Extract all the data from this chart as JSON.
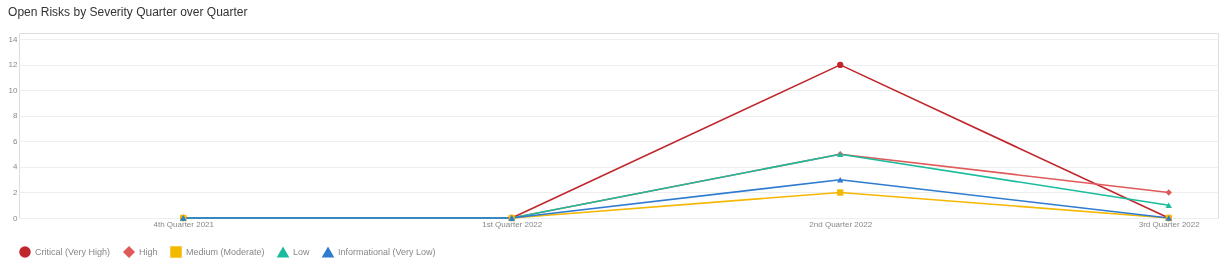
{
  "chart_data": {
    "type": "line",
    "title": "Open Risks by Severity Quarter over Quarter",
    "categories": [
      "4th Quarter 2021",
      "1st Quarter 2022",
      "2nd Quarter 2022",
      "3rd Quarter 2022"
    ],
    "series": [
      {
        "name": "Critical (Very High)",
        "color": "#c0272d",
        "marker": "circle",
        "values": [
          0,
          0,
          12,
          0
        ]
      },
      {
        "name": "High",
        "color": "#e05a5a",
        "marker": "diamond",
        "values": [
          0,
          0,
          5,
          2
        ]
      },
      {
        "name": "Medium (Moderate)",
        "color": "#f5b800",
        "marker": "square",
        "values": [
          0,
          0,
          2,
          0
        ]
      },
      {
        "name": "Low",
        "color": "#1abc9c",
        "marker": "triangle",
        "values": [
          0,
          0,
          5,
          1
        ]
      },
      {
        "name": "Informational (Very Low)",
        "color": "#2f7bd0",
        "marker": "triangle",
        "values": [
          0,
          0,
          3,
          0
        ]
      }
    ],
    "ylim": [
      0,
      14.5
    ],
    "yticks": [
      0,
      2,
      4,
      6,
      8,
      10,
      12,
      14
    ],
    "grid": "y",
    "legend": "bottom",
    "line_style": "solid"
  }
}
